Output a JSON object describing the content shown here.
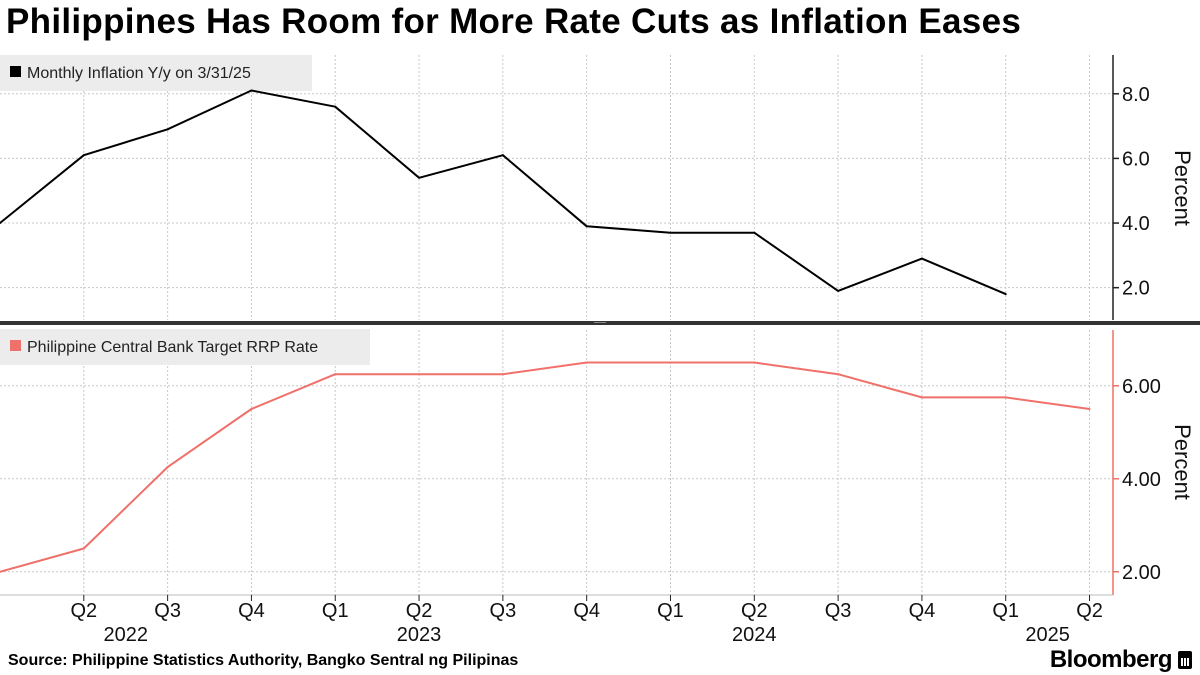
{
  "title": "Philippines Has Room for More Rate Cuts as Inflation Eases",
  "source": "Source: Philippine Statistics Authority, Bangko Sentral ng Pilipinas",
  "brand": "Bloomberg",
  "chart_data": [
    {
      "type": "line",
      "series": [
        {
          "name": "Monthly Inflation Y/y on 3/31/25",
          "color": "#000000",
          "x": [
            2022.0,
            2022.25,
            2022.5,
            2022.75,
            2023.0,
            2023.25,
            2023.5,
            2023.75,
            2024.0,
            2024.25,
            2024.5,
            2024.75,
            2025.0
          ],
          "values": [
            4.0,
            6.1,
            6.9,
            8.1,
            7.6,
            5.4,
            6.1,
            3.9,
            3.7,
            3.7,
            1.9,
            2.9,
            1.8
          ]
        }
      ],
      "ylabel": "Percent",
      "yticks": [
        "2.0",
        "4.0",
        "6.0",
        "8.0"
      ],
      "ylim": [
        1.0,
        9.2
      ]
    },
    {
      "type": "line",
      "series": [
        {
          "name": "Philippine Central Bank Target RRP Rate",
          "color": "#f0706a",
          "x": [
            2022.0,
            2022.25,
            2022.5,
            2022.75,
            2023.0,
            2023.25,
            2023.5,
            2023.75,
            2024.0,
            2024.25,
            2024.5,
            2024.75,
            2025.0,
            2025.25
          ],
          "values": [
            2.0,
            2.5,
            4.25,
            5.5,
            6.25,
            6.25,
            6.25,
            6.5,
            6.5,
            6.5,
            6.25,
            5.75,
            5.75,
            5.5
          ]
        }
      ],
      "ylabel": "Percent",
      "yticks": [
        "2.00",
        "4.00",
        "6.00"
      ],
      "ylim": [
        1.5,
        7.2
      ]
    }
  ],
  "x_axis": {
    "quarter_ticks": [
      "Q2",
      "Q3",
      "Q4",
      "Q1",
      "Q2",
      "Q3",
      "Q4",
      "Q1",
      "Q2",
      "Q3",
      "Q4",
      "Q1",
      "Q2"
    ],
    "quarter_x": [
      2022.25,
      2022.5,
      2022.75,
      2023.0,
      2023.25,
      2023.5,
      2023.75,
      2024.0,
      2024.25,
      2024.5,
      2024.75,
      2025.0,
      2025.25
    ],
    "years": [
      "2022",
      "2023",
      "2024",
      "2025"
    ],
    "year_x": [
      2022.375,
      2023.25,
      2024.25,
      2025.125
    ],
    "xlim": [
      2022.0,
      2025.32
    ]
  }
}
